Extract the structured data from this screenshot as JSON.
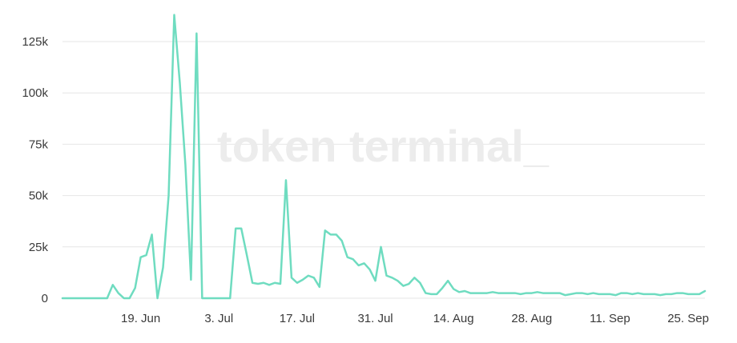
{
  "watermark": {
    "text": "token terminal_"
  },
  "colors": {
    "line": "#6fdcc0",
    "grid": "#e6e6e6",
    "text": "#3a3a3a",
    "watermark": "#ececec",
    "background": "#ffffff"
  },
  "chart_data": {
    "type": "line",
    "title": "",
    "xlabel": "",
    "ylabel": "",
    "grid": true,
    "legend": "none",
    "ylim": [
      0,
      130000
    ],
    "yticks": [
      {
        "value": 0,
        "label": "0"
      },
      {
        "value": 25000,
        "label": "25k"
      },
      {
        "value": 50000,
        "label": "50k"
      },
      {
        "value": 75000,
        "label": "75k"
      },
      {
        "value": 100000,
        "label": "100k"
      },
      {
        "value": 125000,
        "label": "125k"
      }
    ],
    "xlim": [
      "2022-06-05",
      "2022-09-28"
    ],
    "xticks": [
      {
        "date": "2022-06-19",
        "label": "19. Jun"
      },
      {
        "date": "2022-07-03",
        "label": "3. Jul"
      },
      {
        "date": "2022-07-17",
        "label": "17. Jul"
      },
      {
        "date": "2022-07-31",
        "label": "31. Jul"
      },
      {
        "date": "2022-08-14",
        "label": "14. Aug"
      },
      {
        "date": "2022-08-28",
        "label": "28. Aug"
      },
      {
        "date": "2022-09-11",
        "label": "11. Sep"
      },
      {
        "date": "2022-09-25",
        "label": "25. Sep"
      }
    ],
    "series": [
      {
        "points": [
          [
            "2022-06-05",
            0
          ],
          [
            "2022-06-06",
            0
          ],
          [
            "2022-06-07",
            0
          ],
          [
            "2022-06-08",
            0
          ],
          [
            "2022-06-09",
            0
          ],
          [
            "2022-06-10",
            0
          ],
          [
            "2022-06-11",
            0
          ],
          [
            "2022-06-12",
            0
          ],
          [
            "2022-06-13",
            0
          ],
          [
            "2022-06-14",
            6500
          ],
          [
            "2022-06-15",
            2500
          ],
          [
            "2022-06-16",
            0
          ],
          [
            "2022-06-17",
            0
          ],
          [
            "2022-06-18",
            5000
          ],
          [
            "2022-06-19",
            20000
          ],
          [
            "2022-06-20",
            21000
          ],
          [
            "2022-06-21",
            31000
          ],
          [
            "2022-06-22",
            0
          ],
          [
            "2022-06-23",
            15000
          ],
          [
            "2022-06-24",
            50000
          ],
          [
            "2022-06-25",
            138000
          ],
          [
            "2022-06-26",
            105000
          ],
          [
            "2022-06-27",
            65000
          ],
          [
            "2022-06-28",
            9000
          ],
          [
            "2022-06-29",
            129000
          ],
          [
            "2022-06-30",
            0
          ],
          [
            "2022-07-01",
            0
          ],
          [
            "2022-07-02",
            0
          ],
          [
            "2022-07-03",
            0
          ],
          [
            "2022-07-04",
            0
          ],
          [
            "2022-07-05",
            0
          ],
          [
            "2022-07-06",
            34000
          ],
          [
            "2022-07-07",
            34000
          ],
          [
            "2022-07-08",
            21000
          ],
          [
            "2022-07-09",
            7500
          ],
          [
            "2022-07-10",
            7000
          ],
          [
            "2022-07-11",
            7500
          ],
          [
            "2022-07-12",
            6500
          ],
          [
            "2022-07-13",
            7500
          ],
          [
            "2022-07-14",
            7000
          ],
          [
            "2022-07-15",
            57500
          ],
          [
            "2022-07-16",
            10000
          ],
          [
            "2022-07-17",
            7500
          ],
          [
            "2022-07-18",
            9000
          ],
          [
            "2022-07-19",
            11000
          ],
          [
            "2022-07-20",
            10000
          ],
          [
            "2022-07-21",
            5500
          ],
          [
            "2022-07-22",
            33000
          ],
          [
            "2022-07-23",
            31000
          ],
          [
            "2022-07-24",
            31000
          ],
          [
            "2022-07-25",
            28000
          ],
          [
            "2022-07-26",
            20000
          ],
          [
            "2022-07-27",
            19000
          ],
          [
            "2022-07-28",
            16000
          ],
          [
            "2022-07-29",
            17000
          ],
          [
            "2022-07-30",
            14000
          ],
          [
            "2022-07-31",
            8500
          ],
          [
            "2022-08-01",
            25000
          ],
          [
            "2022-08-02",
            11000
          ],
          [
            "2022-08-03",
            10000
          ],
          [
            "2022-08-04",
            8500
          ],
          [
            "2022-08-05",
            6000
          ],
          [
            "2022-08-06",
            7000
          ],
          [
            "2022-08-07",
            10000
          ],
          [
            "2022-08-08",
            7500
          ],
          [
            "2022-08-09",
            2500
          ],
          [
            "2022-08-10",
            2000
          ],
          [
            "2022-08-11",
            2000
          ],
          [
            "2022-08-12",
            5000
          ],
          [
            "2022-08-13",
            8500
          ],
          [
            "2022-08-14",
            4500
          ],
          [
            "2022-08-15",
            3000
          ],
          [
            "2022-08-16",
            3500
          ],
          [
            "2022-08-17",
            2500
          ],
          [
            "2022-08-18",
            2500
          ],
          [
            "2022-08-19",
            2500
          ],
          [
            "2022-08-20",
            2500
          ],
          [
            "2022-08-21",
            3000
          ],
          [
            "2022-08-22",
            2500
          ],
          [
            "2022-08-23",
            2500
          ],
          [
            "2022-08-24",
            2500
          ],
          [
            "2022-08-25",
            2500
          ],
          [
            "2022-08-26",
            2000
          ],
          [
            "2022-08-27",
            2500
          ],
          [
            "2022-08-28",
            2500
          ],
          [
            "2022-08-29",
            3000
          ],
          [
            "2022-08-30",
            2500
          ],
          [
            "2022-08-31",
            2500
          ],
          [
            "2022-09-01",
            2500
          ],
          [
            "2022-09-02",
            2500
          ],
          [
            "2022-09-03",
            1500
          ],
          [
            "2022-09-04",
            2000
          ],
          [
            "2022-09-05",
            2500
          ],
          [
            "2022-09-06",
            2500
          ],
          [
            "2022-09-07",
            2000
          ],
          [
            "2022-09-08",
            2500
          ],
          [
            "2022-09-09",
            2000
          ],
          [
            "2022-09-10",
            2000
          ],
          [
            "2022-09-11",
            2000
          ],
          [
            "2022-09-12",
            1500
          ],
          [
            "2022-09-13",
            2500
          ],
          [
            "2022-09-14",
            2500
          ],
          [
            "2022-09-15",
            2000
          ],
          [
            "2022-09-16",
            2500
          ],
          [
            "2022-09-17",
            2000
          ],
          [
            "2022-09-18",
            2000
          ],
          [
            "2022-09-19",
            2000
          ],
          [
            "2022-09-20",
            1500
          ],
          [
            "2022-09-21",
            2000
          ],
          [
            "2022-09-22",
            2000
          ],
          [
            "2022-09-23",
            2500
          ],
          [
            "2022-09-24",
            2500
          ],
          [
            "2022-09-25",
            2000
          ],
          [
            "2022-09-26",
            2000
          ],
          [
            "2022-09-27",
            2000
          ],
          [
            "2022-09-28",
            3500
          ]
        ]
      }
    ]
  }
}
